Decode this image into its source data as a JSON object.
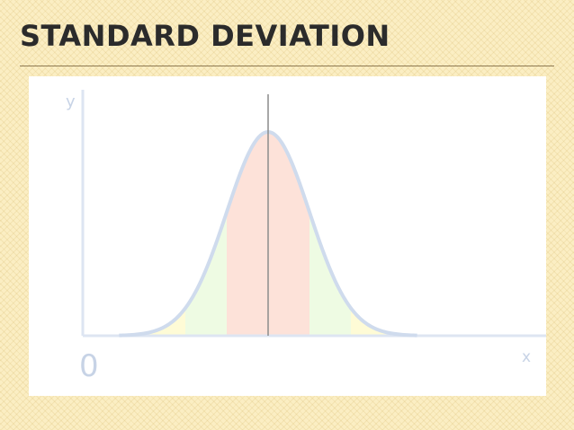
{
  "slide": {
    "title": "STANDARD DEVIATION"
  },
  "colors": {
    "background": "#fbeec3",
    "title_text": "#2b2b2b",
    "curve": "#cfdbed",
    "axis": "#dde5f2",
    "mean_line": "#8c8c8c",
    "band_within_1_sd": "#fde2d9",
    "band_within_2_sd": "#eefbe3",
    "band_within_3_sd": "#fefbd6"
  },
  "chart_data": {
    "type": "area",
    "distribution": "normal",
    "xlabel": "x",
    "ylabel": "y",
    "origin_label": "0",
    "bands": [
      {
        "from_sd": -1,
        "to_sd": 1,
        "color": "#fde2d9"
      },
      {
        "from_sd": -2,
        "to_sd": -1,
        "color": "#eefbe3"
      },
      {
        "from_sd": 1,
        "to_sd": 2,
        "color": "#eefbe3"
      },
      {
        "from_sd": -3,
        "to_sd": -2,
        "color": "#fefbd6"
      },
      {
        "from_sd": 2,
        "to_sd": 3,
        "color": "#fefbd6"
      }
    ],
    "mean_line": true,
    "grid": false
  }
}
